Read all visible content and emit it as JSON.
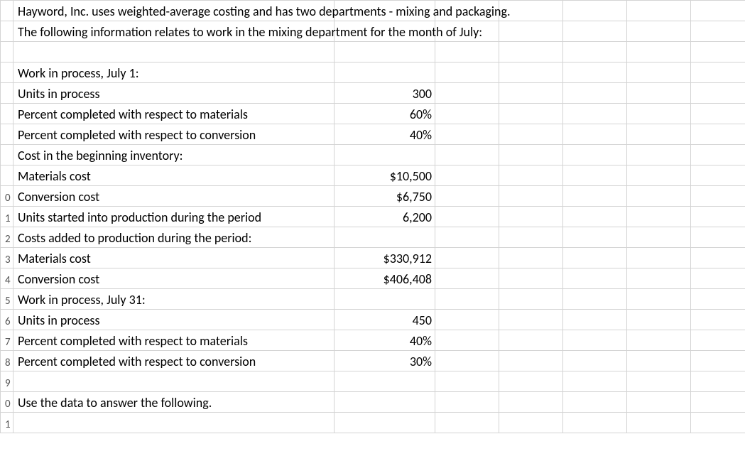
{
  "rowNumbers": [
    "",
    "",
    "",
    "",
    "",
    "",
    "",
    "",
    "",
    "0",
    "1",
    "2",
    "3",
    "4",
    "5",
    "6",
    "7",
    "8",
    "9",
    "0",
    "1"
  ],
  "intro": {
    "line1": "Hayword, Inc. uses weighted-average costing and has two departments - mixing and packaging.",
    "line2": "The following information relates to work in the mixing department for the month of July:"
  },
  "rows": {
    "wip_begin_header": "Work in process, July 1:",
    "units_in_process": {
      "label": "Units in process",
      "value": "300"
    },
    "pct_materials_begin": {
      "label": "Percent completed with respect to materials",
      "value": "60%"
    },
    "pct_conversion_begin": {
      "label": "Percent completed with respect to conversion",
      "value": "40%"
    },
    "cost_begin_header": "Cost in the beginning inventory:",
    "materials_cost_begin": {
      "label": "Materials cost",
      "value": "$10,500"
    },
    "conversion_cost_begin": {
      "label": "Conversion cost",
      "value": "$6,750"
    },
    "units_started": {
      "label": "Units started into production during the period",
      "value": "6,200"
    },
    "costs_added_header": "Costs added to production during the period:",
    "materials_cost_added": {
      "label": "Materials cost",
      "value": "$330,912"
    },
    "conversion_cost_added": {
      "label": "Conversion cost",
      "value": "$406,408"
    },
    "wip_end_header": "Work in process, July 31:",
    "units_in_process_end": {
      "label": "Units in process",
      "value": "450"
    },
    "pct_materials_end": {
      "label": "Percent completed with respect to materials",
      "value": "40%"
    },
    "pct_conversion_end": {
      "label": "Percent completed with respect to conversion",
      "value": "30%"
    },
    "instruction": "Use the data to answer the following."
  }
}
